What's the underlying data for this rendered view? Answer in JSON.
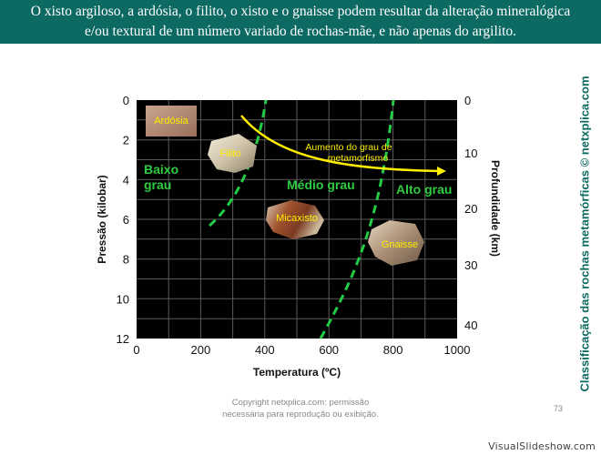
{
  "header": {
    "line1": "O xisto argiloso, a ardósia, o filito, o xisto e o gnaisse podem resultar da alteração mineralógica",
    "line2": "e/ou textural de um número variado de rochas-mãe, e não apenas do argilito."
  },
  "side_caption": "Classificação das rochas metamórficas © netxplica.com",
  "footer": {
    "copyright_line1": "Copyright netxplica.com: permissão",
    "copyright_line2": "necessária para reprodução ou exibição.",
    "page_number": "73",
    "brand": "VisualSlideshow.com"
  },
  "chart_data": {
    "type": "diagram",
    "xlabel": "Temperatura (ºC)",
    "ylabel_left": "Pressão (kilobar)",
    "ylabel_right": "Profundidade (km)",
    "x_ticks": [
      "0",
      "200",
      "400",
      "600",
      "800",
      "1000"
    ],
    "x_range": [
      0,
      1000
    ],
    "y_left_ticks": [
      "0",
      "2",
      "4",
      "6",
      "8",
      "10",
      "12"
    ],
    "y_left_range": [
      0,
      12
    ],
    "y_right_ticks": [
      "0",
      "10",
      "20",
      "30",
      "40"
    ],
    "grade_regions": [
      "Baixo grau",
      "Médio grau",
      "Alto grau"
    ],
    "arrow_label": "Aumento do grau de metamorfismo",
    "rocks": [
      "Ardósia",
      "Filito",
      "Micaxisto",
      "Gnaisse"
    ],
    "colors": {
      "plot_bg": "#000000",
      "grid": "#5a5a5a",
      "boundary": "#22cc44",
      "grade_label": "#2ecc40",
      "arrow": "#ffee00",
      "rock_label": "#ffee00"
    }
  }
}
